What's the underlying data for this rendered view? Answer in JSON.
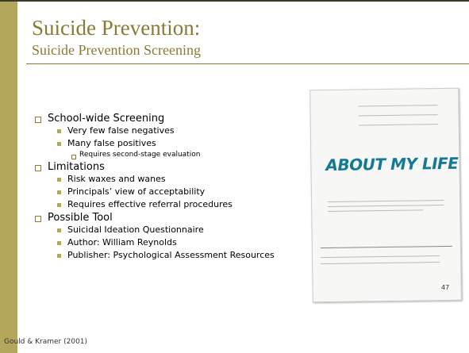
{
  "slide": {
    "title": "Suicide Prevention:",
    "subtitle": "Suicide Prevention Screening",
    "bullets": [
      {
        "text": "School-wide Screening",
        "children": [
          {
            "text": "Very few false negatives",
            "children": []
          },
          {
            "text": "Many false positives",
            "children": [
              {
                "text": "Requires second-stage evaluation"
              }
            ]
          }
        ]
      },
      {
        "text": "Limitations",
        "children": [
          {
            "text": "Risk waxes and wanes",
            "children": []
          },
          {
            "text": "Principals’ view of acceptability",
            "children": []
          },
          {
            "text": "Requires effective referral procedures",
            "children": []
          }
        ]
      },
      {
        "text": "Possible Tool",
        "children": [
          {
            "text": "Suicidal Ideation Questionnaire",
            "children": []
          },
          {
            "text": "Author: William Reynolds",
            "children": []
          },
          {
            "text": "Publisher: Psychological Assessment Resources",
            "children": []
          }
        ]
      }
    ],
    "image_heading": "ABOUT MY LIFE",
    "page_number": "47",
    "footer": "Gould & Kramer (2001)"
  }
}
